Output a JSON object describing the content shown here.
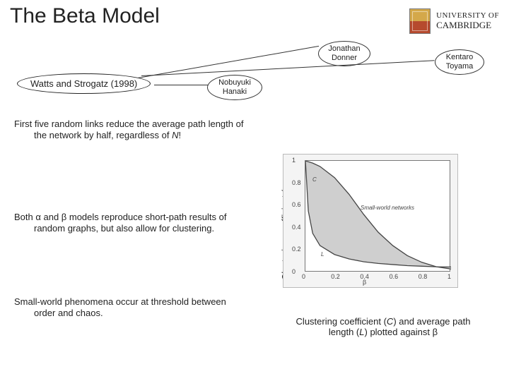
{
  "title": "The Beta Model",
  "university": {
    "line1": "UNIVERSITY OF",
    "line2": "CAMBRIDGE"
  },
  "callouts": {
    "donner": "Jonathan\nDonner",
    "toyama": "Kentaro\nToyama",
    "hanaki": "Nobuyuki\nHanaki"
  },
  "subtitle": "Watts and Strogatz (1998)",
  "para1_a": "First five random links reduce the average path length of the network by half, regardless of ",
  "para1_b": "N",
  "para1_c": "!",
  "para2": "Both α and β models reproduce short-path results of random graphs, but also allow for clustering.",
  "para3": "Small-world phenomena occur at threshold between order and chaos.",
  "chart": {
    "type": "line-shaded",
    "title_annot": "Small-world networks",
    "ylabel": "Clustering coefficient /",
    "xlabel": "β",
    "series_labels": {
      "C": "C",
      "L": "L"
    },
    "xlim": [
      0,
      1
    ],
    "ylim": [
      0,
      1
    ],
    "xticks": [
      0,
      0.2,
      0.4,
      0.6,
      0.8,
      1
    ],
    "yticks": [
      0,
      0.2,
      0.4,
      0.6,
      0.8,
      1
    ],
    "xtick_labels": [
      "0",
      "0.2",
      "0.4",
      "0.6",
      "0.8",
      "1"
    ],
    "ytick_labels": [
      "0",
      "0.2",
      "0.4",
      "0.6",
      "0.8",
      "1"
    ],
    "C_curve": [
      [
        0,
        1.0
      ],
      [
        0.05,
        0.98
      ],
      [
        0.1,
        0.95
      ],
      [
        0.2,
        0.85
      ],
      [
        0.3,
        0.7
      ],
      [
        0.4,
        0.52
      ],
      [
        0.5,
        0.36
      ],
      [
        0.6,
        0.24
      ],
      [
        0.7,
        0.15
      ],
      [
        0.8,
        0.09
      ],
      [
        0.9,
        0.05
      ],
      [
        1.0,
        0.03
      ]
    ],
    "L_curve": [
      [
        0,
        1.0
      ],
      [
        0.02,
        0.55
      ],
      [
        0.05,
        0.35
      ],
      [
        0.1,
        0.24
      ],
      [
        0.2,
        0.16
      ],
      [
        0.3,
        0.12
      ],
      [
        0.4,
        0.095
      ],
      [
        0.5,
        0.08
      ],
      [
        0.6,
        0.07
      ],
      [
        0.7,
        0.06
      ],
      [
        0.8,
        0.055
      ],
      [
        0.9,
        0.05
      ],
      [
        1.0,
        0.048
      ]
    ],
    "colors": {
      "background": "#ffffff",
      "panel": "#f4f4f4",
      "axis": "#777777",
      "C_line": "#444444",
      "L_line": "#444444",
      "fill": "#cfcfcf"
    },
    "line_width": 1.3
  },
  "caption_a": "Clustering coefficient (",
  "caption_b": "C",
  "caption_c": ") and average path length (",
  "caption_d": "L",
  "caption_e": ") plotted against β"
}
